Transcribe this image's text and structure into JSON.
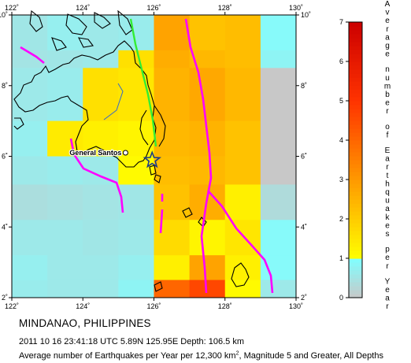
{
  "region_title": "MINDANAO, PHILIPPINES",
  "event_line": "2011 10 16 23:41:18 UTC 5.89N 125.95E Depth: 106.5 km",
  "caption": {
    "before_sup": "Average number of Earthquakes per Year per 12,300 km",
    "sup": "2",
    "after_sup": ", Magnitude 5 and Greater, All Depths"
  },
  "city_label": "General Santos",
  "lon_ticks": [
    "122˚",
    "124˚",
    "126˚",
    "128˚",
    "130˚"
  ],
  "lat_ticks": [
    "2˚",
    "4˚",
    "6˚",
    "8˚",
    "10˚"
  ],
  "colorbar": {
    "ticks": [
      "0",
      "1",
      "2",
      "3",
      "4",
      "5",
      "6",
      "7"
    ],
    "title": "Average number of Earthquakes per Year",
    "stops": [
      {
        "v": 0,
        "color": "#c8c8c8"
      },
      {
        "v": 1,
        "color": "#80ffff"
      },
      {
        "v": 1.0001,
        "color": "#ffff00"
      },
      {
        "v": 3,
        "color": "#ff9900"
      },
      {
        "v": 5,
        "color": "#ff3300"
      },
      {
        "v": 7,
        "color": "#cc0000"
      }
    ]
  },
  "map": {
    "lon_range": [
      122,
      130
    ],
    "lat_range": [
      2,
      10
    ],
    "cell_deg": 1,
    "rows_from_north": [
      [
        0.55,
        0.7,
        0.6,
        0.65,
        2.8,
        2.2,
        2.3,
        0.9
      ],
      [
        0.5,
        0.55,
        0.6,
        1.6,
        2.6,
        2.4,
        2.3,
        0.8
      ],
      [
        0.6,
        0.65,
        1.6,
        1.5,
        2.5,
        2.7,
        2.4,
        0.0
      ],
      [
        0.7,
        1.4,
        1.3,
        1.2,
        2.4,
        2.5,
        2.2,
        0.0
      ],
      [
        0.6,
        0.65,
        0.6,
        1.1,
        2.3,
        2.4,
        2.2,
        0.0
      ],
      [
        0.4,
        0.45,
        0.5,
        0.55,
        2.2,
        2.6,
        1.3,
        0.35
      ],
      [
        0.6,
        0.6,
        0.55,
        0.6,
        1.7,
        1.2,
        1.5,
        0.9
      ],
      [
        0.7,
        0.6,
        0.6,
        0.7,
        1.3,
        2.8,
        1.3,
        0.9
      ],
      [
        0.65,
        0.6,
        0.6,
        0.8,
        4.0,
        4.6,
        1.1,
        0.6
      ]
    ],
    "row_lat_tops": [
      10,
      9,
      8.5,
      7,
      6,
      5.2,
      4.2,
      3.2,
      2.5
    ],
    "row_lat_bottoms": [
      9,
      8.5,
      7,
      6,
      5.2,
      4.2,
      3.2,
      2.5,
      2
    ],
    "epicenter": {
      "lon": 125.95,
      "lat": 5.89
    },
    "city": {
      "lon": 125.2,
      "lat": 6.1
    },
    "colors": {
      "coast": "#000000",
      "trench": "#ff00ff",
      "fault": "#33dd33",
      "river": "#3366cc"
    }
  }
}
